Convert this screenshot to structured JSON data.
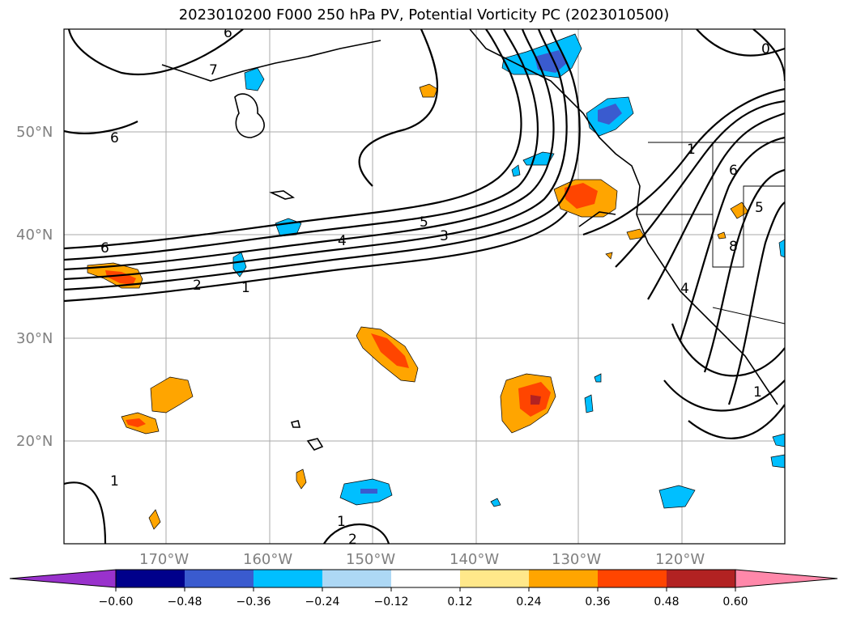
{
  "title": "2023010200 F000 250 hPa PV, Potential Vorticity PC (2023010500)",
  "map": {
    "lat_labels": [
      "50°N",
      "40°N",
      "30°N",
      "20°N"
    ],
    "lon_labels": [
      "170°W",
      "160°W",
      "150°W",
      "140°W",
      "130°W",
      "120°W"
    ],
    "contour_labels": [
      "6",
      "7",
      "6",
      "6",
      "5",
      "4",
      "3",
      "2",
      "1",
      "1",
      "1",
      "2",
      "8",
      "5",
      "0",
      "6",
      "1",
      "4",
      "1"
    ]
  },
  "colorbar": {
    "ticks": [
      "−0.60",
      "−0.48",
      "−0.36",
      "−0.24",
      "−0.12",
      "0.12",
      "0.24",
      "0.36",
      "0.48",
      "0.60"
    ],
    "colors": [
      "#9932cc",
      "#00008b",
      "#3a5bcf",
      "#00bfff",
      "#add8f5",
      "#ffffff",
      "#ffe88a",
      "#ffa500",
      "#ff4500",
      "#b22222",
      "#ff88aa"
    ]
  }
}
